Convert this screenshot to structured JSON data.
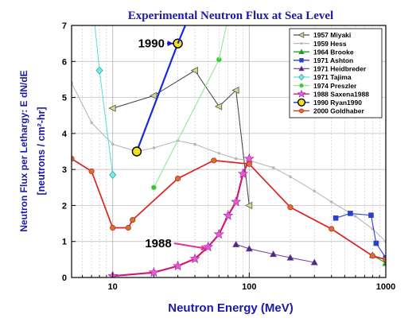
{
  "chart_data": {
    "type": "line",
    "title": "Experimental Neutron Flux at Sea Level",
    "xlabel": "Neutron Energy (MeV)",
    "ylabel_outer": "Neutron Flux per Lethargy:  E dN/dE",
    "ylabel_inner": "[neutrons / cm²-hr]",
    "xscale": "log",
    "xlim": [
      5,
      1000
    ],
    "ylim": [
      0,
      7
    ],
    "x_ticks": [
      10,
      100,
      1000
    ],
    "x_tick_labels": [
      "10",
      "100",
      "1000"
    ],
    "y_ticks": [
      0,
      1,
      2,
      3,
      4,
      5,
      6,
      7
    ],
    "y_tick_labels": [
      "0",
      "1",
      "2",
      "3",
      "4",
      "5",
      "6",
      "7"
    ],
    "grid": true,
    "legend_position": "top-right",
    "colors": {
      "title": "#1a1aa8",
      "axis_label": "#1a1aa8",
      "grid": "#b9b9b9",
      "frame": "#000000",
      "legend_border": "#000000"
    },
    "annotations": [
      {
        "text": "1990",
        "x": 24,
        "y": 6.5,
        "target_x": 30,
        "target_y": 6.5,
        "color": "#1a1aa8"
      },
      {
        "text": "1988",
        "x": 27,
        "y": 0.95,
        "target_x": 53,
        "target_y": 0.8,
        "color": "#e0359a"
      }
    ],
    "series": [
      {
        "name": "1957 Miyaki",
        "color": "#4d4d4d",
        "marker": "tri-left",
        "marker_color": "#d6d68a",
        "points": [
          [
            10,
            4.7
          ],
          [
            20,
            5.05
          ],
          [
            40,
            5.75
          ],
          [
            60,
            4.75
          ],
          [
            80,
            5.2
          ],
          [
            100,
            2.0
          ]
        ]
      },
      {
        "name": "1959 Hess",
        "color": "#b8b8b8",
        "marker": "dot",
        "marker_color": "#b8b8b8",
        "points": [
          [
            5,
            5.4
          ],
          [
            7,
            4.3
          ],
          [
            10,
            3.7
          ],
          [
            15,
            3.5
          ],
          [
            20,
            3.6
          ],
          [
            30,
            3.8
          ],
          [
            40,
            3.7
          ],
          [
            60,
            3.45
          ],
          [
            80,
            3.3
          ],
          [
            100,
            3.25
          ],
          [
            150,
            3.05
          ],
          [
            200,
            2.8
          ],
          [
            300,
            2.4
          ],
          [
            400,
            2.1
          ],
          [
            600,
            1.7
          ],
          [
            800,
            1.35
          ],
          [
            1000,
            1.0
          ]
        ]
      },
      {
        "name": "1964 Brooke",
        "color": "#22a022",
        "marker": "triangle-up",
        "marker_color": "#22a022",
        "points": [
          [
            800,
            0.62
          ],
          [
            1000,
            0.4
          ]
        ]
      },
      {
        "name": "1971 Ashton",
        "color": "#2a3fd0",
        "marker": "square",
        "marker_color": "#2a3fd0",
        "points": [
          [
            430,
            1.65
          ],
          [
            550,
            1.78
          ],
          [
            780,
            1.73
          ],
          [
            850,
            0.95
          ],
          [
            1000,
            0.55
          ]
        ]
      },
      {
        "name": "1971 Heidbreder",
        "color": "#7a4a9e",
        "marker": "triangle-up",
        "marker_color": "#4b2a7e",
        "points": [
          [
            80,
            0.92
          ],
          [
            100,
            0.8
          ],
          [
            150,
            0.65
          ],
          [
            200,
            0.55
          ],
          [
            300,
            0.42
          ]
        ]
      },
      {
        "name": "1971 Tajima",
        "color": "#5fe0e0",
        "marker": "diamond",
        "marker_color": "#7fe8e8",
        "points": [
          [
            8,
            5.75
          ],
          [
            10,
            2.85
          ]
        ]
      },
      {
        "name": "1974 Preszler",
        "color": "#8fe88f",
        "marker": "circle",
        "marker_color": "#3cc43c",
        "points": [
          [
            20,
            2.5
          ],
          [
            60,
            6.05
          ]
        ]
      },
      {
        "name": "1988 Saxena1988",
        "color": "#d11a6a",
        "marker": "star",
        "marker_color": "#e65ad8",
        "points": [
          [
            10,
            0.04
          ],
          [
            20,
            0.14
          ],
          [
            30,
            0.32
          ],
          [
            40,
            0.52
          ],
          [
            50,
            0.85
          ],
          [
            60,
            1.2
          ],
          [
            70,
            1.72
          ],
          [
            80,
            2.1
          ],
          [
            90,
            2.88
          ],
          [
            100,
            3.3
          ]
        ]
      },
      {
        "name": "1990 Ryan1990",
        "color": "#1a2ad0",
        "marker": "circle-big",
        "marker_color": "#f0e020",
        "points": [
          [
            15,
            3.5
          ],
          [
            30,
            6.5
          ]
        ]
      },
      {
        "name": "2000 Goldhaber",
        "color": "#e02020",
        "marker": "circle",
        "marker_color": "#c87830",
        "points": [
          [
            5,
            3.3
          ],
          [
            7,
            2.95
          ],
          [
            10,
            1.38
          ],
          [
            13,
            1.38
          ],
          [
            14,
            1.6
          ],
          [
            30,
            2.75
          ],
          [
            55,
            3.25
          ],
          [
            100,
            3.15
          ],
          [
            200,
            1.95
          ],
          [
            400,
            1.35
          ],
          [
            800,
            0.6
          ],
          [
            1000,
            0.5
          ]
        ]
      }
    ],
    "offscale_lines": [
      {
        "series": "1971 Tajima",
        "from": [
          8,
          5.75
        ],
        "to": [
          7.4,
          7.0
        ]
      },
      {
        "series": "1974 Preszler",
        "from": [
          60,
          6.05
        ],
        "to": [
          68,
          7.0
        ]
      },
      {
        "series": "1990 Ryan1990",
        "from": [
          30,
          6.5
        ],
        "to": [
          34,
          7.0
        ]
      }
    ]
  }
}
